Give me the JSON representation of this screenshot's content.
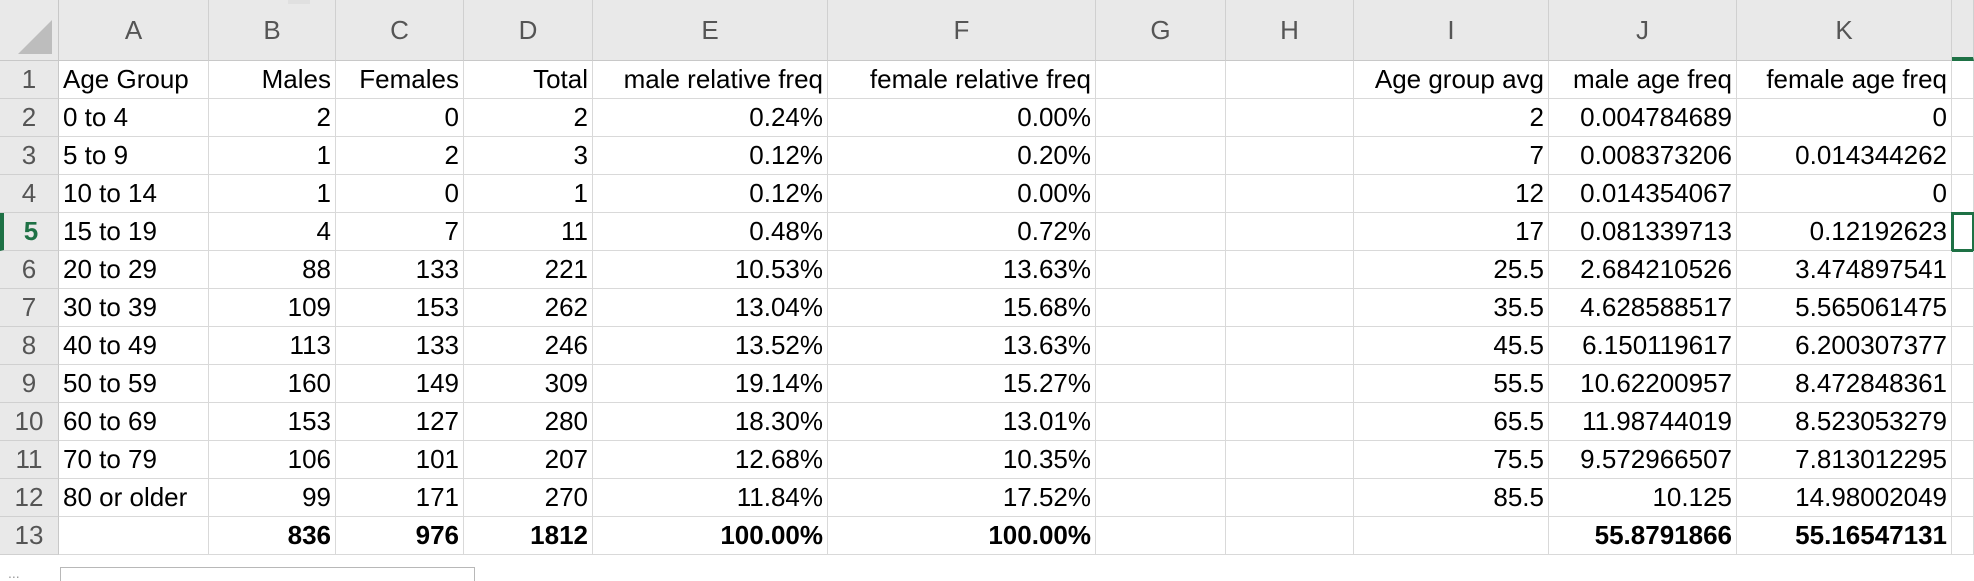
{
  "columns": [
    "A",
    "B",
    "C",
    "D",
    "E",
    "F",
    "G",
    "H",
    "I",
    "J",
    "K"
  ],
  "rows": [
    {
      "n": "1",
      "cells": [
        "Age Group",
        "Males",
        "Females",
        "Total",
        "male relative freq",
        "female relative freq",
        "",
        "",
        "Age group avg",
        "male age freq",
        "female age freq"
      ]
    },
    {
      "n": "2",
      "cells": [
        "0 to 4",
        "2",
        "0",
        "2",
        "0.24%",
        "0.00%",
        "",
        "",
        "2",
        "0.004784689",
        "0"
      ]
    },
    {
      "n": "3",
      "cells": [
        "5 to 9",
        "1",
        "2",
        "3",
        "0.12%",
        "0.20%",
        "",
        "",
        "7",
        "0.008373206",
        "0.014344262"
      ]
    },
    {
      "n": "4",
      "cells": [
        "10 to 14",
        "1",
        "0",
        "1",
        "0.12%",
        "0.00%",
        "",
        "",
        "12",
        "0.014354067",
        "0"
      ]
    },
    {
      "n": "5",
      "cells": [
        "15 to 19",
        "4",
        "7",
        "11",
        "0.48%",
        "0.72%",
        "",
        "",
        "17",
        "0.081339713",
        "0.12192623"
      ]
    },
    {
      "n": "6",
      "cells": [
        "20 to 29",
        "88",
        "133",
        "221",
        "10.53%",
        "13.63%",
        "",
        "",
        "25.5",
        "2.684210526",
        "3.474897541"
      ]
    },
    {
      "n": "7",
      "cells": [
        "30 to 39",
        "109",
        "153",
        "262",
        "13.04%",
        "15.68%",
        "",
        "",
        "35.5",
        "4.628588517",
        "5.565061475"
      ]
    },
    {
      "n": "8",
      "cells": [
        "40 to 49",
        "113",
        "133",
        "246",
        "13.52%",
        "13.63%",
        "",
        "",
        "45.5",
        "6.150119617",
        "6.200307377"
      ]
    },
    {
      "n": "9",
      "cells": [
        "50 to 59",
        "160",
        "149",
        "309",
        "19.14%",
        "15.27%",
        "",
        "",
        "55.5",
        "10.62200957",
        "8.472848361"
      ]
    },
    {
      "n": "10",
      "cells": [
        "60 to 69",
        "153",
        "127",
        "280",
        "18.30%",
        "13.01%",
        "",
        "",
        "65.5",
        "11.98744019",
        "8.523053279"
      ]
    },
    {
      "n": "11",
      "cells": [
        "70 to 79",
        "106",
        "101",
        "207",
        "12.68%",
        "10.35%",
        "",
        "",
        "75.5",
        "9.572966507",
        "7.813012295"
      ]
    },
    {
      "n": "12",
      "cells": [
        "80 or older",
        "99",
        "171",
        "270",
        "11.84%",
        "17.52%",
        "",
        "",
        "85.5",
        "10.125",
        "14.98002049"
      ]
    },
    {
      "n": "13",
      "cells": [
        "",
        "836",
        "976",
        "1812",
        "100.00%",
        "100.00%",
        "",
        "",
        "",
        "55.8791866",
        "55.16547131"
      ]
    }
  ],
  "active_row": "5",
  "active_column": "L",
  "bottom_marker": "..."
}
